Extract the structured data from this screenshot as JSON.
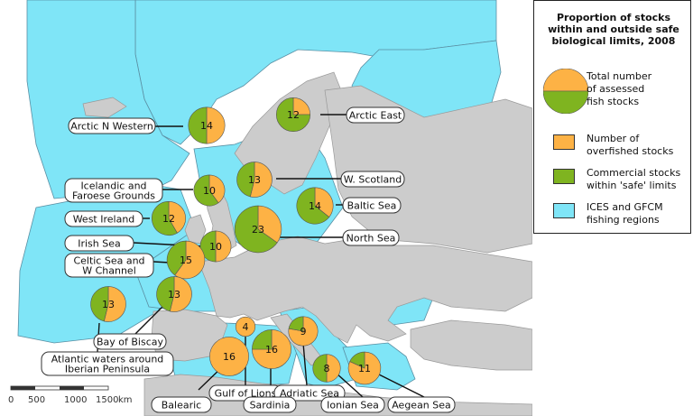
{
  "legend": {
    "title_lines": [
      "Proportion of stocks",
      "within and outside safe",
      "biological limits, 2008"
    ],
    "total_lines": [
      "Total number",
      "of assessed",
      "fish stocks"
    ],
    "overfished_lines": [
      "Number of",
      "overfished stocks"
    ],
    "commercial_lines": [
      "Commercial stocks",
      "within 'safe' limits"
    ],
    "regions_lines": [
      "ICES and GFCM",
      "fishing regions"
    ]
  },
  "colors": {
    "overfished": "#FDB245",
    "safe": "#7FB420",
    "region": "#7FE5F7",
    "land": "#CCCCCC",
    "sea": "#FFFFFF"
  },
  "regions": [
    {
      "id": "arctic-n-western",
      "label_lines": [
        "Arctic N Western"
      ],
      "total": 14,
      "overfished": 7
    },
    {
      "id": "arctic-east",
      "label_lines": [
        "Arctic East"
      ],
      "total": 12,
      "overfished": 3
    },
    {
      "id": "icelandic-faroese",
      "label_lines": [
        "Icelandic and",
        "Faroese Grounds"
      ],
      "total": 10,
      "overfished": 4
    },
    {
      "id": "w-scotland",
      "label_lines": [
        "W. Scotland"
      ],
      "total": 13,
      "overfished": 7
    },
    {
      "id": "baltic-sea",
      "label_lines": [
        "Baltic Sea"
      ],
      "total": 14,
      "overfished": 5
    },
    {
      "id": "west-ireland",
      "label_lines": [
        "West Ireland"
      ],
      "total": 12,
      "overfished": 5
    },
    {
      "id": "north-sea",
      "label_lines": [
        "North Sea"
      ],
      "total": 23,
      "overfished": 8
    },
    {
      "id": "irish-sea",
      "label_lines": [
        "Irish Sea"
      ],
      "total": 10,
      "overfished": 5
    },
    {
      "id": "celtic-sea",
      "label_lines": [
        "Celtic Sea and",
        "W Channel"
      ],
      "total": 15,
      "overfished": 9
    },
    {
      "id": "bay-of-biscay",
      "label_lines": [
        "Bay of Biscay"
      ],
      "total": 13,
      "overfished": 7
    },
    {
      "id": "atlantic-iberian",
      "label_lines": [
        "Atlantic waters around",
        "Iberian Peninsula"
      ],
      "total": 13,
      "overfished": 7
    },
    {
      "id": "gulf-of-lions",
      "label_lines": [
        "Gulf of Lions"
      ],
      "total": 4,
      "overfished": 4
    },
    {
      "id": "adriatic-sea",
      "label_lines": [
        "Adriatic Sea"
      ],
      "total": 9,
      "overfished": 7
    },
    {
      "id": "balearic",
      "label_lines": [
        "Balearic"
      ],
      "total": 16,
      "overfished": 16
    },
    {
      "id": "sardinia",
      "label_lines": [
        "Sardinia"
      ],
      "total": 16,
      "overfished": 12
    },
    {
      "id": "ionian-sea",
      "label_lines": [
        "Ionian Sea"
      ],
      "total": 8,
      "overfished": 4
    },
    {
      "id": "aegean-sea",
      "label_lines": [
        "Aegean Sea"
      ],
      "total": 11,
      "overfished": 9
    }
  ],
  "scale_bar": {
    "ticks": [
      "0",
      "500",
      "1000",
      "1500"
    ],
    "unit": "km"
  }
}
